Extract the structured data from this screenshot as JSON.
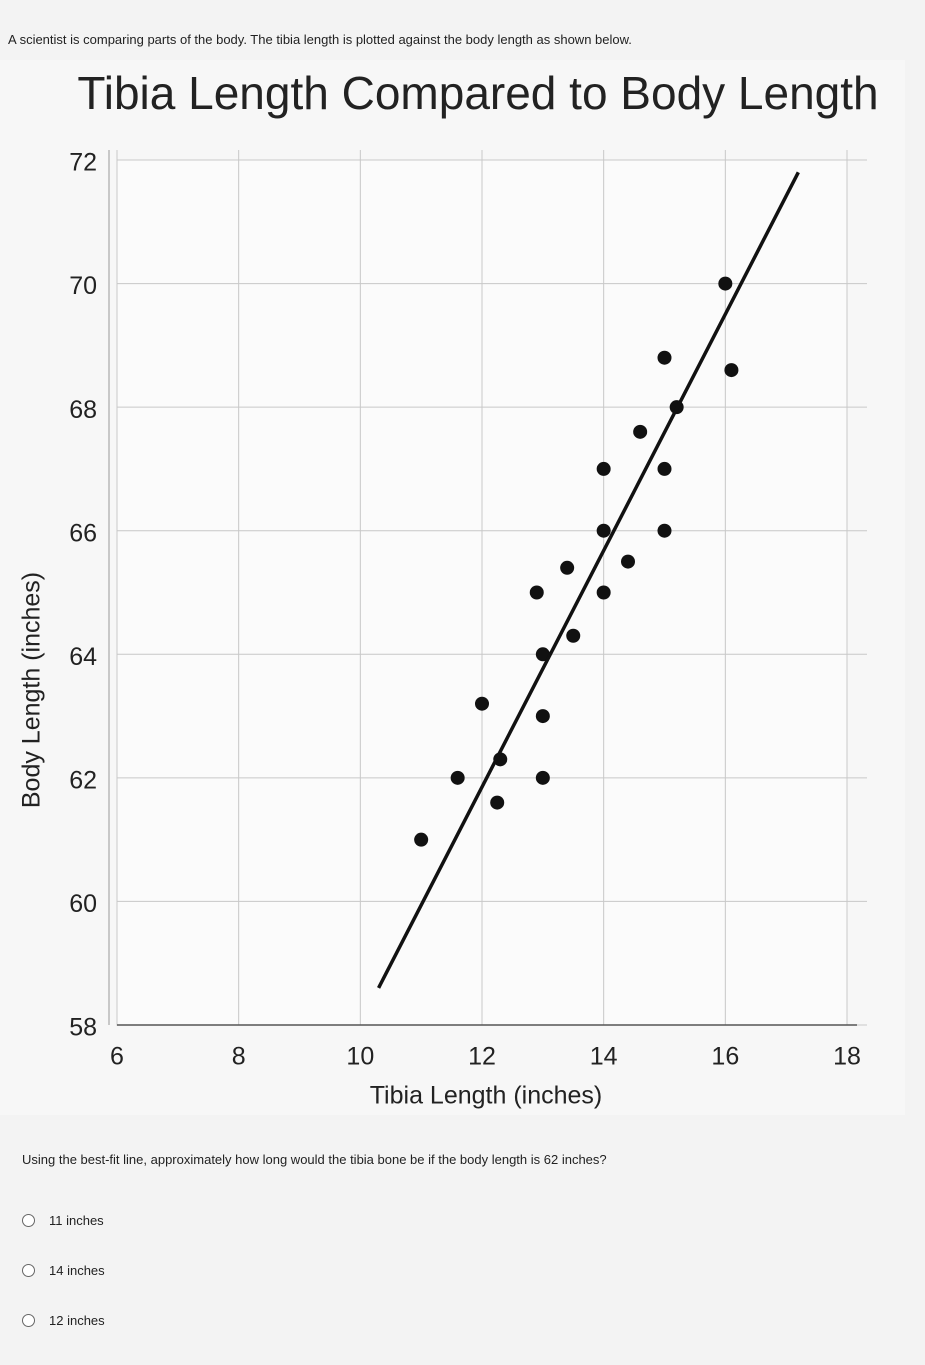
{
  "intro": "A scientist is comparing parts of the body. The tibia length is plotted against the body length as shown below.",
  "chart_data": {
    "type": "scatter",
    "title": "Tibia Length Compared to Body Length",
    "x_label": "Tibia Length (inches)",
    "y_label": "Body Length (inches)",
    "x": [
      11,
      11.6,
      12,
      12.3,
      12.25,
      12.9,
      13,
      13,
      13,
      13.4,
      13.5,
      14,
      14,
      14,
      14.4,
      14.6,
      15,
      15,
      15,
      15.2,
      16,
      16.1
    ],
    "values": [
      61,
      62,
      63.2,
      62.3,
      61.6,
      65,
      64,
      63,
      62,
      65.4,
      64.3,
      67,
      66,
      65,
      65.5,
      67.6,
      68.8,
      67,
      66,
      68,
      70,
      68.6
    ],
    "color": "#111111",
    "fit_line": {
      "x": [
        10.3,
        17.2
      ],
      "values": [
        58.6,
        71.8
      ]
    },
    "xlim": [
      6,
      18
    ],
    "xticks": [
      6,
      8,
      10,
      12,
      14,
      16,
      18
    ],
    "ylim": [
      58,
      72
    ],
    "yticks": [
      58,
      60,
      62,
      64,
      66,
      68,
      70,
      72
    ],
    "grid": true
  },
  "question": "Using the best-fit line, approximately how long would the tibia bone be if the body length is 62 inches?",
  "options": [
    "11 inches",
    "14 inches",
    "12 inches"
  ]
}
